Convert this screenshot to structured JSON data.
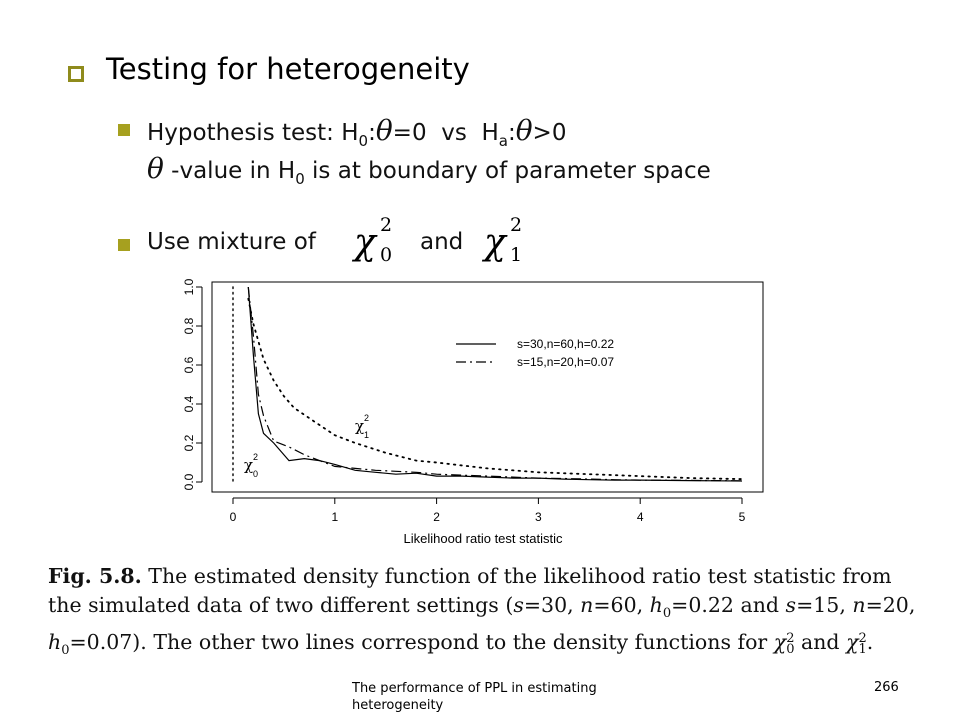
{
  "slide": {
    "title": "Testing for heterogeneity",
    "bullet1": {
      "prefix": "Hypothesis test: H",
      "h0_sub": "0",
      "colon1": ":",
      "theta": "θ",
      "eq0": "=0",
      "vs": "vs",
      "ha": "H",
      "ha_sub": "a",
      "colon2": ":",
      "gt0": ">0"
    },
    "bullet1_line2": {
      "theta": "θ",
      "text_a": " -value in H",
      "sub": "0",
      "text_b": " is at boundary of parameter space"
    },
    "bullet2": {
      "text": "Use mixture of",
      "and": "and",
      "chi": "χ",
      "chi0_sup": "2",
      "chi0_sub": "0",
      "chi1_sup": "2",
      "chi1_sub": "1"
    }
  },
  "chart_data": {
    "type": "line",
    "xlabel": "Likelihood ratio test statistic",
    "ylabel": "",
    "xlim": [
      0,
      5
    ],
    "ylim": [
      0,
      1.0
    ],
    "x_ticks": [
      "0",
      "1",
      "2",
      "3",
      "4",
      "5"
    ],
    "y_ticks": [
      "0.0",
      "0.2",
      "0.4",
      "0.6",
      "0.8",
      "1.0"
    ],
    "legend_position": "top-right",
    "series": [
      {
        "name": "s=30,n=60,h=0.22",
        "style": "solid",
        "x": [
          0.15,
          0.2,
          0.25,
          0.3,
          0.4,
          0.55,
          0.7,
          0.85,
          1.0,
          1.2,
          1.4,
          1.6,
          1.8,
          2.0,
          2.25,
          2.5,
          2.75,
          3.0,
          3.25,
          3.5,
          3.75,
          4.0,
          4.25,
          4.5,
          4.75,
          5.0
        ],
        "y": [
          1.0,
          0.65,
          0.35,
          0.25,
          0.2,
          0.11,
          0.12,
          0.11,
          0.09,
          0.06,
          0.05,
          0.04,
          0.045,
          0.03,
          0.03,
          0.025,
          0.02,
          0.02,
          0.015,
          0.012,
          0.01,
          0.01,
          0.008,
          0.007,
          0.006,
          0.005
        ]
      },
      {
        "name": "s=15,n=20,h=0.07",
        "style": "dashdot",
        "x": [
          0.15,
          0.2,
          0.25,
          0.3,
          0.4,
          0.55,
          0.7,
          0.85,
          1.0,
          1.2,
          1.4,
          1.6,
          1.8,
          2.0,
          2.25,
          2.5,
          2.75,
          3.0,
          3.25,
          3.5,
          3.75,
          4.0,
          4.25,
          4.5,
          4.75,
          5.0
        ],
        "y": [
          1.0,
          0.75,
          0.45,
          0.34,
          0.21,
          0.18,
          0.14,
          0.11,
          0.08,
          0.07,
          0.06,
          0.055,
          0.05,
          0.04,
          0.035,
          0.03,
          0.025,
          0.02,
          0.018,
          0.015,
          0.012,
          0.01,
          0.009,
          0.008,
          0.007,
          0.006
        ]
      },
      {
        "name": "χ²₁",
        "style": "dotted",
        "x": [
          0.15,
          0.2,
          0.3,
          0.4,
          0.5,
          0.6,
          0.8,
          1.0,
          1.2,
          1.5,
          1.8,
          2.0,
          2.5,
          3.0,
          3.5,
          4.0,
          4.5,
          5.0
        ],
        "y": [
          0.94,
          0.81,
          0.63,
          0.52,
          0.44,
          0.38,
          0.31,
          0.24,
          0.2,
          0.15,
          0.11,
          0.1,
          0.07,
          0.05,
          0.04,
          0.03,
          0.02,
          0.015
        ]
      }
    ],
    "vertical_lines": [
      {
        "name": "χ²₀",
        "x": 0,
        "style": "dotted"
      }
    ],
    "annotations": {
      "chi1": {
        "base": "χ",
        "sup": "2",
        "sub": "1"
      },
      "chi0": {
        "base": "χ",
        "sup": "2",
        "sub": "0"
      }
    }
  },
  "caption": {
    "fig": "Fig. 5.8.",
    "line1": " The estimated density function of the likelihood ratio test statistic from",
    "line2a": "the simulated data of two different settings (",
    "s1": "s",
    "eq30": "=30, ",
    "n1": "n",
    "eq60": "=60, ",
    "h1": "h",
    "h1sub": "0",
    "eq022": "=0.22 and ",
    "s2": "s",
    "eq15": "=15, ",
    "n2": "n",
    "eq20": "=20,",
    "h2": "h",
    "h2sub": "0",
    "eq007": "=0.07). The other two lines correspond to the density functions for ",
    "chi": "χ",
    "sup2a": "2",
    "sub0": "0",
    "and": " and ",
    "sup2b": "2",
    "sub1": "1",
    "end": "."
  },
  "footer": {
    "text": "The performance of PPL in estimating heterogeneity",
    "page": "266"
  },
  "colors": {
    "bullet_accent": "#a6a01f",
    "title_bullet_border": "#8f8b1c"
  }
}
